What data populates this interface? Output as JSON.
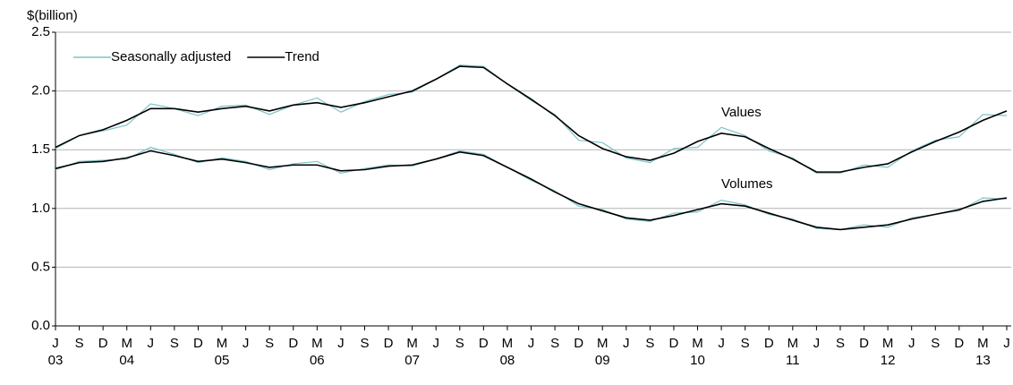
{
  "chart_data": {
    "type": "line",
    "y_label": "$(billion)",
    "categories": [
      "J",
      "S",
      "D",
      "M",
      "J",
      "S",
      "D",
      "M",
      "J",
      "S",
      "D",
      "M",
      "J",
      "S",
      "D",
      "M",
      "J",
      "S",
      "D",
      "M",
      "J",
      "S",
      "D",
      "M",
      "J",
      "S",
      "D",
      "M",
      "J",
      "S",
      "D",
      "M",
      "J",
      "S",
      "D",
      "M",
      "J",
      "S",
      "D",
      "M",
      "J"
    ],
    "category_years": [
      "03",
      null,
      null,
      "04",
      null,
      null,
      null,
      "05",
      null,
      null,
      null,
      "06",
      null,
      null,
      null,
      "07",
      null,
      null,
      null,
      "08",
      null,
      null,
      null,
      "09",
      null,
      null,
      null,
      "10",
      null,
      null,
      null,
      "11",
      null,
      null,
      null,
      "12",
      null,
      null,
      null,
      "13",
      null
    ],
    "ylim": [
      0,
      2.5
    ],
    "yticks": [
      {
        "value": 0,
        "label": "0.0"
      },
      0.5,
      {
        "value": 1,
        "label": "1.0"
      },
      1.5,
      {
        "value": 2,
        "label": "2.0"
      },
      2.5
    ],
    "grid": true,
    "legend": [
      {
        "name": "Seasonally adjusted",
        "color": "#7cc3c8"
      },
      {
        "name": "Trend",
        "color": "#000000"
      }
    ],
    "annotations": [
      "Values",
      "Volumes"
    ],
    "series": [
      {
        "style": 0,
        "values": [
          1.51,
          1.62,
          1.66,
          1.71,
          1.89,
          1.85,
          1.79,
          1.87,
          1.88,
          1.8,
          1.88,
          1.94,
          1.82,
          1.91,
          1.97,
          1.99,
          2.1,
          2.22,
          2.21,
          2.06,
          1.92,
          1.8,
          1.58,
          1.56,
          1.43,
          1.39,
          1.51,
          1.52,
          1.69,
          1.62,
          1.49,
          1.43,
          1.3,
          1.3,
          1.37,
          1.35,
          1.49,
          1.58,
          1.61,
          1.8,
          1.79
        ]
      },
      {
        "style": 1,
        "values": [
          1.52,
          1.62,
          1.67,
          1.75,
          1.85,
          1.85,
          1.82,
          1.85,
          1.87,
          1.83,
          1.88,
          1.9,
          1.86,
          1.9,
          1.95,
          2.0,
          2.1,
          2.21,
          2.2,
          2.06,
          1.93,
          1.79,
          1.62,
          1.51,
          1.44,
          1.41,
          1.47,
          1.57,
          1.64,
          1.61,
          1.51,
          1.42,
          1.31,
          1.31,
          1.35,
          1.38,
          1.48,
          1.57,
          1.65,
          1.75,
          1.83
        ]
      },
      {
        "style": 0,
        "values": [
          1.33,
          1.4,
          1.41,
          1.42,
          1.52,
          1.46,
          1.39,
          1.43,
          1.4,
          1.33,
          1.38,
          1.4,
          1.3,
          1.34,
          1.37,
          1.36,
          1.42,
          1.49,
          1.46,
          1.35,
          1.24,
          1.15,
          1.02,
          0.99,
          0.91,
          0.89,
          0.96,
          0.97,
          1.07,
          1.03,
          0.95,
          0.91,
          0.83,
          0.82,
          0.86,
          0.84,
          0.92,
          0.95,
          0.98,
          1.09,
          1.08
        ]
      },
      {
        "style": 1,
        "values": [
          1.34,
          1.39,
          1.4,
          1.43,
          1.49,
          1.45,
          1.4,
          1.42,
          1.39,
          1.35,
          1.37,
          1.37,
          1.32,
          1.33,
          1.36,
          1.37,
          1.42,
          1.48,
          1.45,
          1.35,
          1.25,
          1.14,
          1.04,
          0.98,
          0.92,
          0.9,
          0.94,
          0.99,
          1.04,
          1.02,
          0.96,
          0.9,
          0.84,
          0.82,
          0.84,
          0.86,
          0.91,
          0.95,
          0.99,
          1.06,
          1.09
        ]
      }
    ]
  }
}
